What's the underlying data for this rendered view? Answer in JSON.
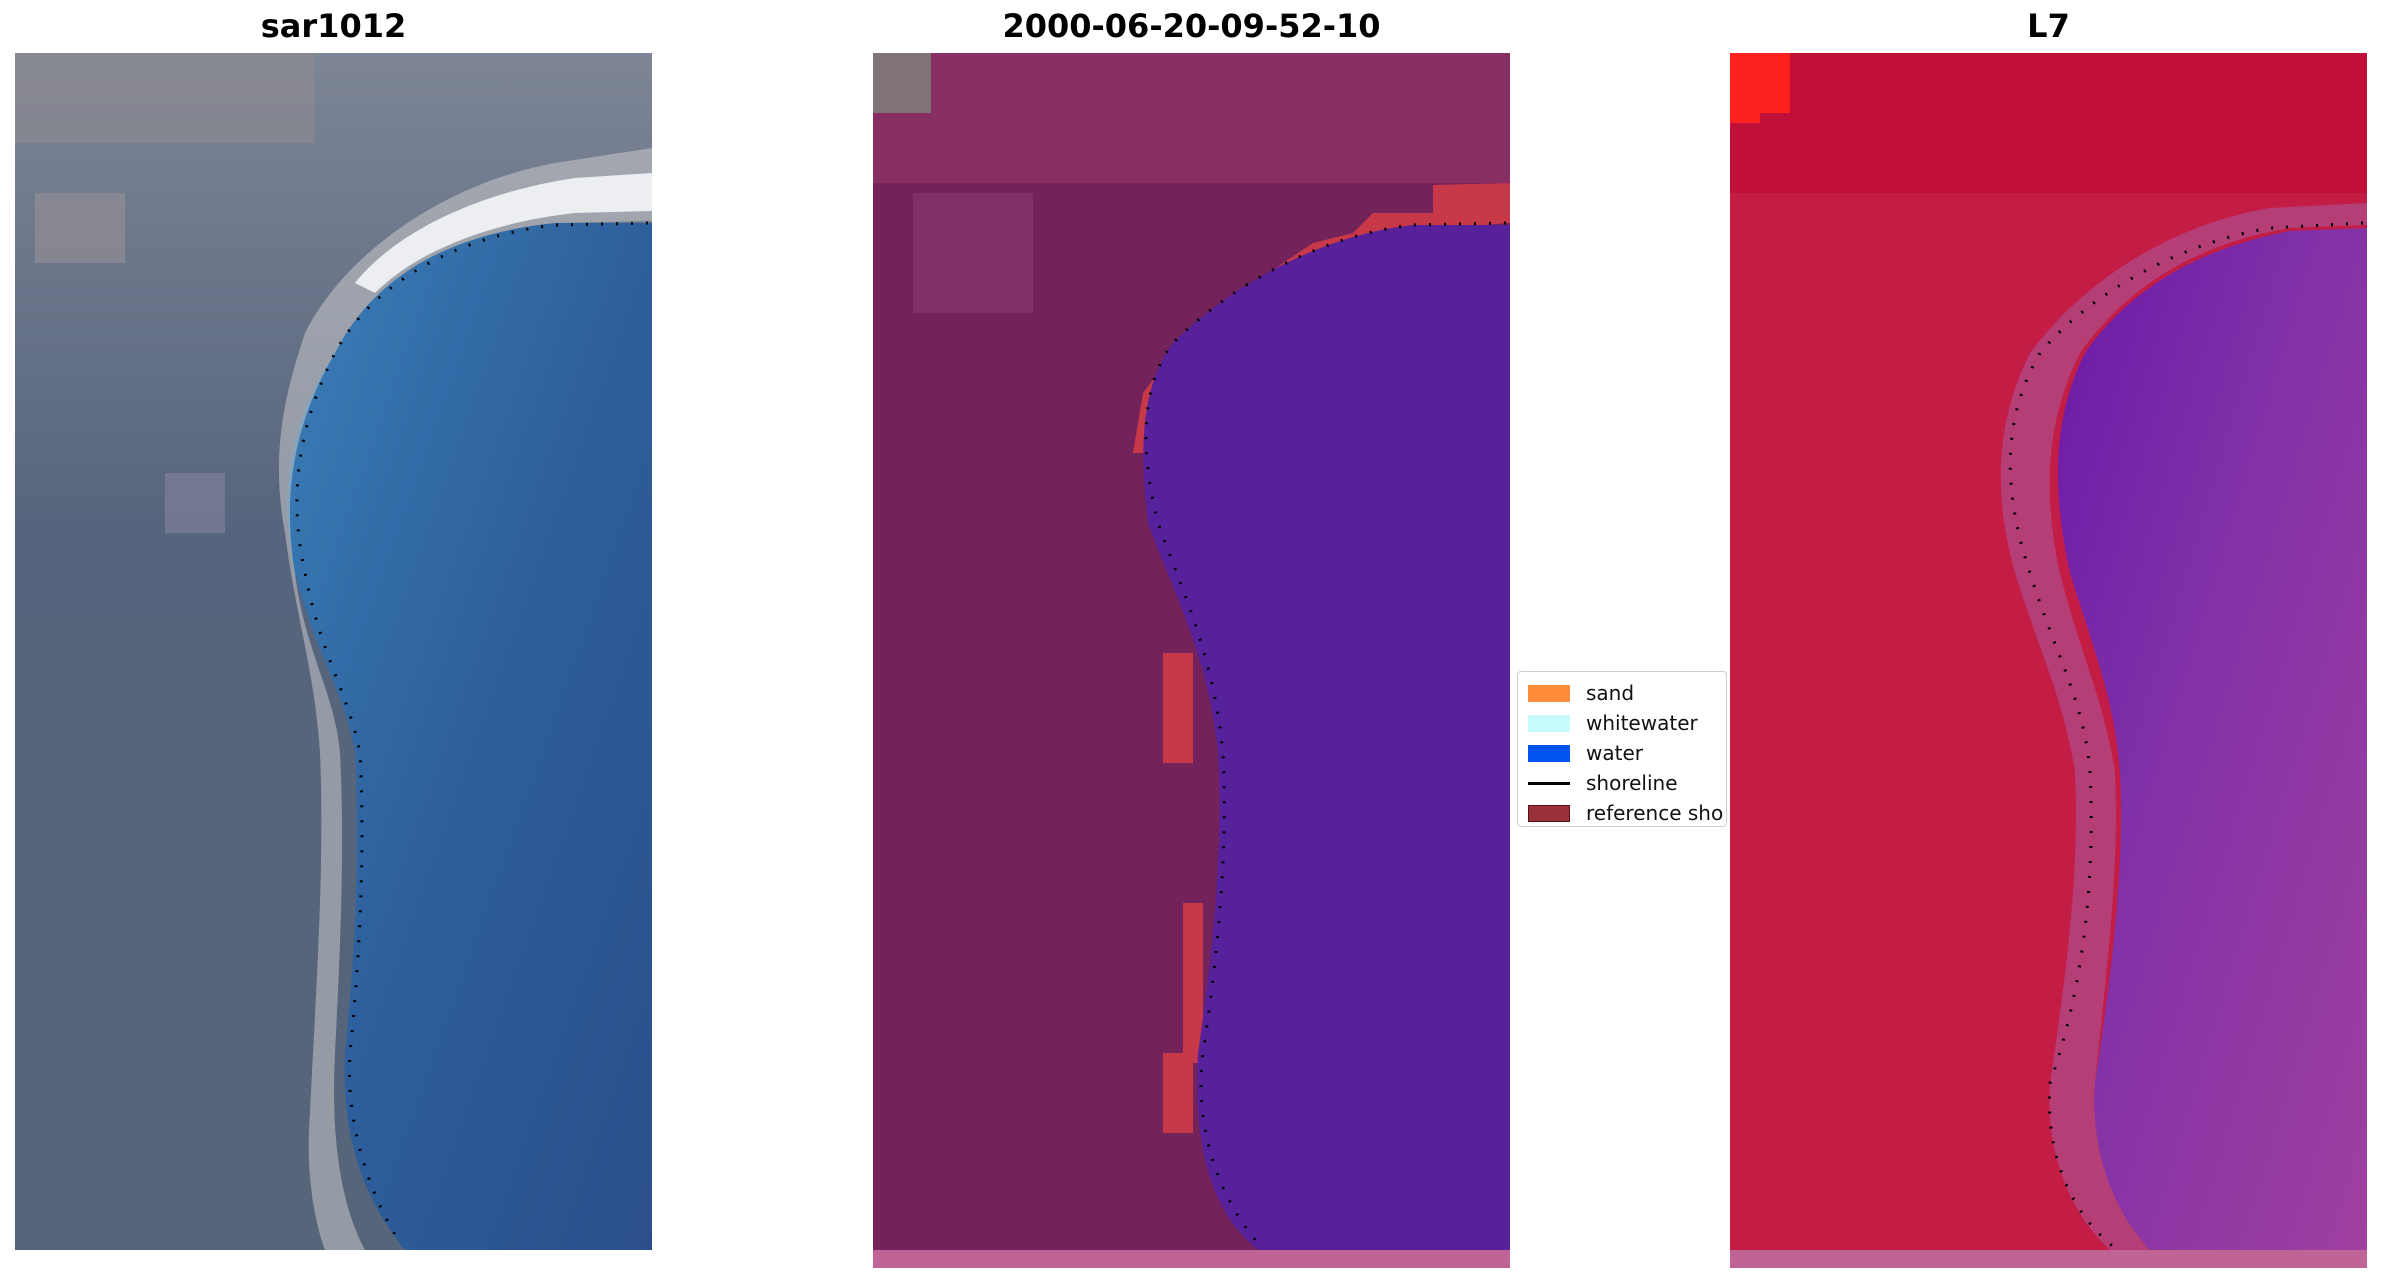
{
  "panels": [
    {
      "title": "sar1012"
    },
    {
      "title": "2000-06-20-09-52-10"
    },
    {
      "title": "L7"
    }
  ],
  "legend": {
    "items": [
      {
        "label": "sand",
        "color": "#ff8c3a",
        "type": "patch"
      },
      {
        "label": "whitewater",
        "color": "#c8fcfc",
        "type": "patch"
      },
      {
        "label": "water",
        "color": "#0055ee",
        "type": "patch"
      },
      {
        "label": "shoreline",
        "color": "#000000",
        "type": "line"
      },
      {
        "label": "reference sho",
        "color": "#9a3038",
        "type": "patch"
      }
    ]
  },
  "colors": {
    "land_rgb": "#5e6a80",
    "sea_rgb": "#2a5a9a",
    "classified_land": "#7a2458",
    "classified_water": "#55229a",
    "classified_sand": "#d03a4a",
    "ndwi_land": "#c21a45",
    "ndwi_water": "#8a30a8",
    "strip": "#c06090"
  }
}
